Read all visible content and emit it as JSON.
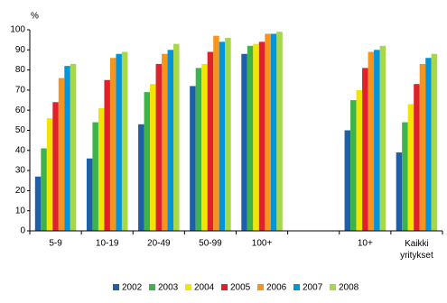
{
  "chart_data": {
    "type": "bar",
    "y_label": "%",
    "categories": [
      "5-9",
      "10-19",
      "20-49",
      "50-99",
      "100+",
      null,
      "10+",
      "Kaikki yritykset"
    ],
    "series": [
      {
        "name": "2002",
        "color": "#1f5fa8",
        "values": [
          27,
          36,
          53,
          72,
          88,
          null,
          50,
          39
        ]
      },
      {
        "name": "2003",
        "color": "#3cb44b",
        "values": [
          41,
          54,
          69,
          81,
          92,
          null,
          65,
          54
        ]
      },
      {
        "name": "2004",
        "color": "#f2e600",
        "values": [
          56,
          61,
          73,
          83,
          93,
          null,
          70,
          63
        ]
      },
      {
        "name": "2005",
        "color": "#e0202a",
        "values": [
          64,
          75,
          83,
          89,
          94,
          null,
          81,
          73
        ]
      },
      {
        "name": "2006",
        "color": "#f7941d",
        "values": [
          76,
          86,
          88,
          97,
          98,
          null,
          89,
          83
        ]
      },
      {
        "name": "2007",
        "color": "#0095db",
        "values": [
          82,
          88,
          90,
          94,
          98,
          null,
          90,
          86
        ]
      },
      {
        "name": "2008",
        "color": "#a6d84a",
        "values": [
          83,
          89,
          93,
          96,
          99,
          null,
          92,
          88
        ]
      }
    ],
    "ylim": [
      0,
      100
    ],
    "yticks": [
      0,
      10,
      20,
      30,
      40,
      50,
      60,
      70,
      80,
      90,
      100
    ],
    "grid": false,
    "legend": "bottom"
  }
}
